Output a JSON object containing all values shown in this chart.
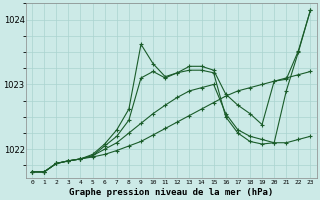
{
  "title": "Graphe pression niveau de la mer (hPa)",
  "bg_color": "#cceae7",
  "grid_color": "#aad4d0",
  "line_color": "#1a5c2a",
  "ylim": [
    1021.55,
    1024.25
  ],
  "yticks": [
    1022,
    1023,
    1024
  ],
  "xmin": -0.5,
  "xmax": 23.5,
  "series": [
    [
      1021.65,
      1021.65,
      1021.78,
      1021.82,
      1021.85,
      1021.88,
      1021.92,
      1021.98,
      1022.05,
      1022.12,
      1022.22,
      1022.32,
      1022.42,
      1022.52,
      1022.62,
      1022.72,
      1022.82,
      1022.9,
      1022.95,
      1023.0,
      1023.05,
      1023.1,
      1023.15,
      1023.2
    ],
    [
      1021.65,
      1021.65,
      1021.78,
      1021.82,
      1021.85,
      1021.9,
      1022.0,
      1022.1,
      1022.25,
      1022.4,
      1022.55,
      1022.68,
      1022.8,
      1022.9,
      1022.95,
      1023.0,
      1022.55,
      1022.3,
      1022.2,
      1022.15,
      1022.1,
      1022.1,
      1022.15,
      1022.2
    ],
    [
      1021.65,
      1021.65,
      1021.78,
      1021.82,
      1021.85,
      1021.9,
      1022.05,
      1022.2,
      1022.45,
      1023.1,
      1023.2,
      1023.1,
      1023.18,
      1023.22,
      1023.22,
      1023.18,
      1022.5,
      1022.25,
      1022.12,
      1022.08,
      1022.1,
      1022.9,
      1023.5,
      1024.15
    ],
    [
      1021.65,
      1021.65,
      1021.78,
      1021.82,
      1021.85,
      1021.92,
      1022.08,
      1022.3,
      1022.62,
      1023.62,
      1023.32,
      1023.12,
      1023.18,
      1023.28,
      1023.28,
      1023.22,
      1022.85,
      1022.68,
      1022.55,
      1022.38,
      1023.05,
      1023.08,
      1023.52,
      1024.15
    ]
  ]
}
